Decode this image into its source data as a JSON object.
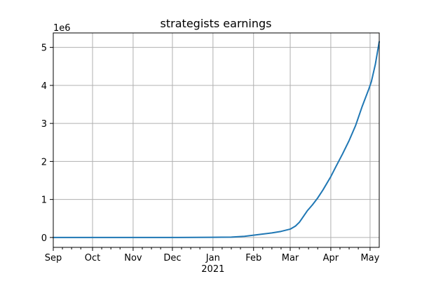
{
  "chart_data": {
    "type": "line",
    "title": "strategists earnings",
    "xlabel": "",
    "ylabel": "",
    "y_offset_label": "1e6",
    "grid": true,
    "line_color": "#1f77b4",
    "xlim": [
      "2020-09-01",
      "2021-05-08"
    ],
    "ylim": [
      -0.26,
      5.38
    ],
    "x_ticks": [
      {
        "date": "2020-09-01",
        "label": "Sep"
      },
      {
        "date": "2020-10-01",
        "label": "Oct"
      },
      {
        "date": "2020-11-01",
        "label": "Nov"
      },
      {
        "date": "2020-12-01",
        "label": "Dec"
      },
      {
        "date": "2021-01-01",
        "label": "Jan",
        "sublabel": "2021"
      },
      {
        "date": "2021-02-01",
        "label": "Feb"
      },
      {
        "date": "2021-03-01",
        "label": "Mar"
      },
      {
        "date": "2021-04-01",
        "label": "Apr"
      },
      {
        "date": "2021-05-01",
        "label": "May"
      }
    ],
    "y_ticks": [
      0,
      1,
      2,
      3,
      4,
      5
    ],
    "series": [
      {
        "x": [
          "2020-09-01",
          "2020-10-01",
          "2020-11-01",
          "2020-12-01",
          "2021-01-01",
          "2021-01-15",
          "2021-01-25",
          "2021-02-01",
          "2021-02-08",
          "2021-02-15",
          "2021-02-22",
          "2021-03-01",
          "2021-03-05",
          "2021-03-08",
          "2021-03-10",
          "2021-03-14",
          "2021-03-18",
          "2021-03-22",
          "2021-03-26",
          "2021-04-01",
          "2021-04-05",
          "2021-04-10",
          "2021-04-15",
          "2021-04-20",
          "2021-04-25",
          "2021-04-30",
          "2021-05-02",
          "2021-05-05",
          "2021-05-08"
        ],
        "y": [
          0,
          0,
          0,
          0,
          0.005,
          0.01,
          0.03,
          0.06,
          0.09,
          0.12,
          0.16,
          0.22,
          0.3,
          0.4,
          0.5,
          0.7,
          0.86,
          1.04,
          1.25,
          1.6,
          1.87,
          2.2,
          2.55,
          2.95,
          3.45,
          3.9,
          4.1,
          4.55,
          5.15
        ]
      }
    ]
  }
}
